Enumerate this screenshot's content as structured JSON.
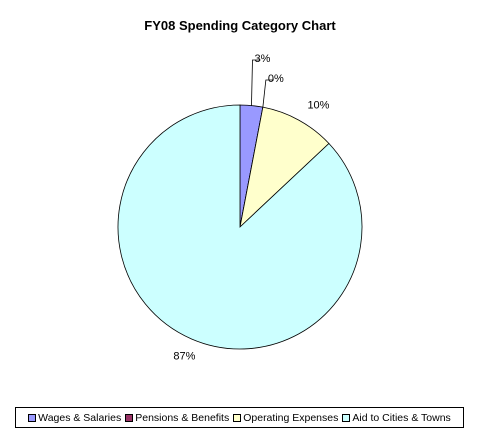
{
  "chart_data": {
    "type": "pie",
    "title": "FY08 Spending Category Chart",
    "categories": [
      "Wages & Salaries",
      "Pensions & Benefits",
      "Operating Expenses",
      "Aid to Cities & Towns"
    ],
    "values": [
      3,
      0,
      10,
      87
    ],
    "labels": [
      "3%",
      "0%",
      "10%",
      "87%"
    ],
    "colors": [
      "#9999ff",
      "#993366",
      "#ffffcc",
      "#ccffff"
    ],
    "legend_position": "bottom"
  }
}
